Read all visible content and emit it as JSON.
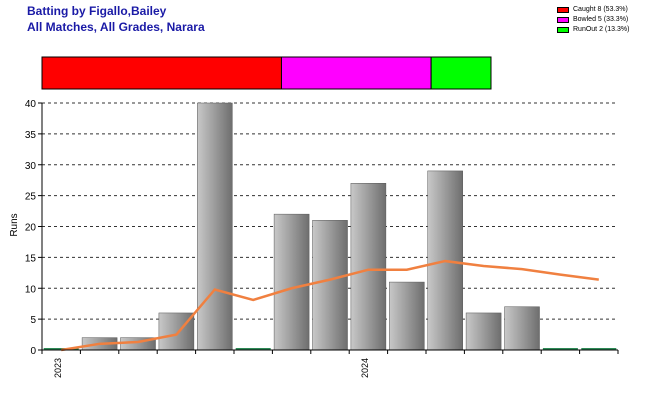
{
  "header": {
    "title_line1": "Batting by Figallo,Bailey",
    "title_line2": "All Matches, All Grades, Narara"
  },
  "legend": {
    "items": [
      {
        "label": "Caught 8 (53.3%)",
        "color": "#ff0000"
      },
      {
        "label": "Bowled 5 (33.3%)",
        "color": "#ff00ff"
      },
      {
        "label": "RunOut 2 (13.3%)",
        "color": "#00ff00"
      }
    ]
  },
  "chart_data": {
    "type": "bar",
    "ylabel": "Runs",
    "ylim": [
      0,
      40
    ],
    "yticks": [
      0,
      5,
      10,
      15,
      20,
      25,
      30,
      35,
      40
    ],
    "grid": true,
    "legend_position": "top-right",
    "x_labels": [
      {
        "label": "2023",
        "index": 0
      },
      {
        "label": "2024",
        "index": 8
      }
    ],
    "bars": [
      0,
      2,
      2,
      6,
      40,
      0,
      22,
      21,
      27,
      11,
      29,
      6,
      7,
      0,
      0
    ],
    "series": [
      {
        "name": "Runs",
        "type": "bar",
        "color": "#9a9a9a",
        "values": [
          0,
          2,
          2,
          6,
          40,
          0,
          22,
          21,
          27,
          11,
          29,
          6,
          7,
          0,
          0
        ]
      },
      {
        "name": "Average",
        "type": "line",
        "color": "#f08040",
        "values": [
          0,
          1,
          1.3,
          2.5,
          9.8,
          8.1,
          10,
          11.4,
          13,
          13,
          14.4,
          13.6,
          13.1,
          12.2,
          11.4
        ]
      }
    ],
    "dismissals": [
      {
        "label": "Caught",
        "count": 8,
        "percent": 53.3,
        "color": "#ff0000"
      },
      {
        "label": "Bowled",
        "count": 5,
        "percent": 33.3,
        "color": "#ff00ff"
      },
      {
        "label": "RunOut",
        "count": 2,
        "percent": 13.3,
        "color": "#00ff00"
      }
    ]
  }
}
